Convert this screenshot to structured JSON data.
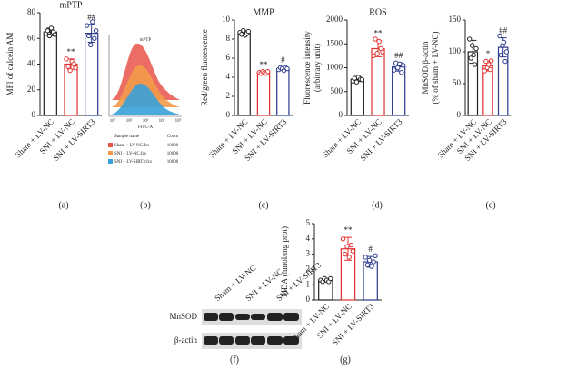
{
  "chart_data": [
    {
      "type": "bar",
      "panel_label": "(a)",
      "title": "mPTP",
      "ylabel": [
        "MFI of calcein AM"
      ],
      "categories": [
        "Sham + LV-NC",
        "SNI + LV-NC",
        "SNI + LV-SIRT3"
      ],
      "colors": [
        "#222222",
        "#e03030",
        "#2a3a8c"
      ],
      "values": [
        65,
        40,
        64
      ],
      "errors": [
        3,
        4,
        7
      ],
      "annotations": [
        null,
        "**",
        "##"
      ],
      "points": [
        [
          64,
          66,
          62,
          68,
          65,
          63
        ],
        [
          44,
          38,
          35,
          42,
          40,
          37
        ],
        [
          70,
          62,
          55,
          73,
          60,
          66
        ]
      ],
      "ylim": [
        0,
        80
      ],
      "yticks": [
        0,
        20,
        40,
        60,
        80
      ]
    },
    {
      "type": "bar",
      "panel_label": "(c)",
      "title": "MMP",
      "ylabel": [
        "Red/green fluorescence"
      ],
      "categories": [
        "Sham + LV-NC",
        "SNI + LV-NC",
        "SNI + LV-SIRT3"
      ],
      "colors": [
        "#222222",
        "#e03030",
        "#2a3a8c"
      ],
      "values": [
        8.6,
        4.5,
        4.9
      ],
      "errors": [
        0.25,
        0.1,
        0.15
      ],
      "annotations": [
        null,
        "**",
        "#"
      ],
      "points": [
        [
          8.7,
          8.5,
          8.9,
          8.4,
          8.6,
          8.8
        ],
        [
          4.5,
          4.4,
          4.6,
          4.5,
          4.4,
          4.6
        ],
        [
          4.8,
          5.0,
          4.9,
          4.7,
          5.0,
          4.9
        ]
      ],
      "ylim": [
        0,
        10
      ],
      "yticks": [
        0,
        2,
        4,
        6,
        8,
        10
      ]
    },
    {
      "type": "bar",
      "panel_label": "(d)",
      "title": "ROS",
      "ylabel": [
        "Fluorescence intensity",
        "(arbitrary unit)"
      ],
      "categories": [
        "Sham + LV-NC",
        "SNI + LV-NC",
        "SNI + LV-SIRT3"
      ],
      "colors": [
        "#222222",
        "#e03030",
        "#2a3a8c"
      ],
      "values": [
        760,
        1400,
        1020
      ],
      "errors": [
        50,
        170,
        90
      ],
      "annotations": [
        null,
        "**",
        "##"
      ],
      "points": [
        [
          720,
          780,
          700,
          800,
          760,
          750
        ],
        [
          1250,
          1600,
          1300,
          1550,
          1400,
          1330
        ],
        [
          950,
          1100,
          1000,
          1080,
          900,
          1050
        ]
      ],
      "ylim": [
        0,
        2000
      ],
      "yticks": [
        0,
        500,
        1000,
        1500,
        2000
      ]
    },
    {
      "type": "bar",
      "panel_label": "(e)",
      "ylabel": [
        "MnSOD/β-actin",
        "(% of sham + LV-NC)"
      ],
      "categories": [
        "Sham + LV-NC",
        "SNI + LV-NC",
        "SNI + LV-SIRT3"
      ],
      "colors": [
        "#222222",
        "#e03030",
        "#2a3a8c"
      ],
      "values": [
        100,
        78,
        107
      ],
      "errors": [
        18,
        8,
        15
      ],
      "annotations": [
        null,
        "*",
        "##"
      ],
      "points": [
        [
          120,
          90,
          110,
          95,
          80,
          105
        ],
        [
          70,
          85,
          75,
          80,
          72,
          86
        ],
        [
          125,
          95,
          110,
          115,
          85,
          100
        ]
      ],
      "ylim": [
        0,
        150
      ],
      "yticks": [
        0,
        50,
        100,
        150
      ]
    },
    {
      "type": "bar",
      "panel_label": "(g)",
      "ylabel": [
        "MDA (nmol/mg prot)"
      ],
      "categories": [
        "Sham + LV-NC",
        "SNI + LV-NC",
        "SNI + LV-SIRT3"
      ],
      "colors": [
        "#222222",
        "#e03030",
        "#2a3a8c"
      ],
      "values": [
        1.3,
        3.35,
        2.5
      ],
      "errors": [
        0.08,
        0.75,
        0.35
      ],
      "annotations": [
        null,
        "**",
        "#"
      ],
      "points": [
        [
          1.3,
          1.2,
          1.4,
          1.3,
          1.2,
          1.4
        ],
        [
          4.0,
          3.0,
          3.5,
          2.8,
          3.6,
          3.2
        ],
        [
          2.8,
          2.3,
          2.6,
          2.2,
          2.5,
          2.9
        ]
      ],
      "ylim": [
        0,
        5
      ],
      "yticks": [
        0,
        1,
        2,
        3,
        4,
        5
      ]
    }
  ],
  "flow_panel": {
    "panel_label": "(b)",
    "title": "mPTP",
    "xlabel": "FITC-A",
    "xticks": [
      "10¹",
      "10²",
      "10³",
      "10⁴",
      "10⁵"
    ],
    "legend_header": [
      "Sample name",
      "Count"
    ],
    "legend_rows": [
      [
        "Sham + LV-NC.fcs",
        "10000"
      ],
      [
        "SNI + LV-NC.fcs",
        "10000"
      ],
      [
        "SNI + LV-SIRT3.fcs",
        "10000"
      ]
    ]
  },
  "blot_panel": {
    "panel_label": "(f)",
    "columns": [
      "Sham + LV-NC",
      "SNI + LV-NC",
      "SNI + LV-SIRT3"
    ],
    "rows": [
      "MnSOD",
      "β-actin"
    ]
  }
}
